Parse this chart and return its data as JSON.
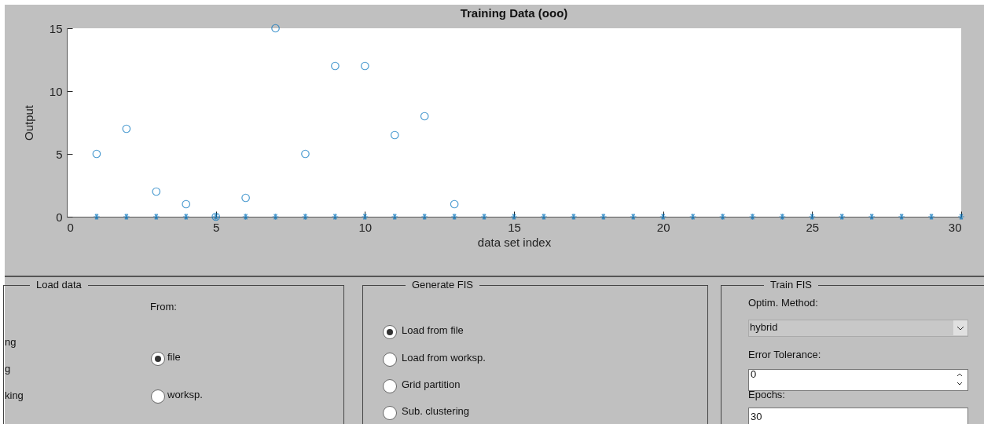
{
  "chart_data": {
    "type": "scatter",
    "title": "Training Data (ooo)",
    "xlabel": "data set index",
    "ylabel": "Output",
    "xlim": [
      0,
      30
    ],
    "xticks": [
      0,
      5,
      10,
      15,
      20,
      25,
      30
    ],
    "ylim": [
      0,
      15
    ],
    "yticks": [
      0,
      5,
      10,
      15
    ],
    "grid": false,
    "series": [
      {
        "color": "#0072bd",
        "marker": "circle",
        "x": [
          1,
          2,
          3,
          4,
          5,
          6,
          7,
          8,
          9,
          10,
          11,
          12,
          13
        ],
        "values": [
          5,
          7,
          2,
          1,
          0,
          1.5,
          15,
          5,
          12,
          12,
          6.5,
          8,
          1
        ]
      },
      {
        "color": "#0072bd",
        "marker": "cross",
        "x": [
          1,
          2,
          3,
          4,
          5,
          6,
          7,
          8,
          9,
          10,
          11,
          12,
          13,
          14,
          15,
          16,
          17,
          18,
          19,
          20,
          21,
          22,
          23,
          24,
          25,
          26,
          27,
          28,
          29,
          30
        ],
        "values": [
          0,
          0,
          0,
          0,
          0,
          0,
          0,
          0,
          0,
          0,
          0,
          0,
          0,
          0,
          0,
          0,
          0,
          0,
          0,
          0,
          0,
          0,
          0,
          0,
          0,
          0,
          0,
          0,
          0,
          0
        ]
      }
    ],
    "annotations": [
      "Load data",
      "From:",
      "ng",
      "file",
      "g",
      "king",
      "worksp.",
      "Generate FIS",
      "Load from file",
      "Load from worksp.",
      "Grid partition",
      "Sub. clustering",
      "Train FIS",
      "Optim. Method:",
      "hybrid",
      "Error Tolerance:",
      "0",
      "Epochs:",
      "30"
    ]
  }
}
